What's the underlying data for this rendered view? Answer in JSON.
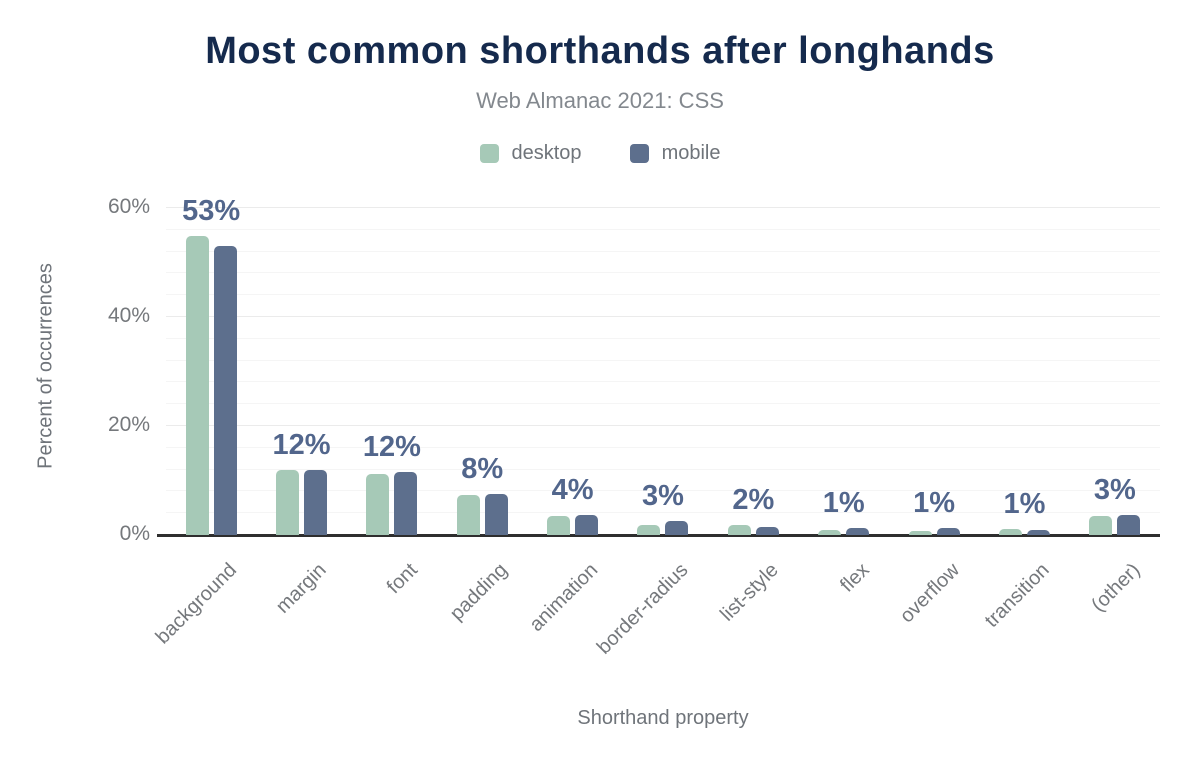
{
  "header": {
    "title": "Most common shorthands after longhands",
    "subtitle": "Web Almanac 2021: CSS"
  },
  "legend": [
    {
      "label": "desktop",
      "color": "#a6c9b7"
    },
    {
      "label": "mobile",
      "color": "#5d6f8d"
    }
  ],
  "chart_data": {
    "type": "bar",
    "title": "Most common shorthands after longhands",
    "subtitle": "Web Almanac 2021: CSS",
    "categories": [
      "background",
      "margin",
      "font",
      "padding",
      "animation",
      "border-radius",
      "list-style",
      "flex",
      "overflow",
      "transition",
      "(other)"
    ],
    "series": [
      {
        "name": "desktop",
        "color": "#a6c9b7",
        "values": [
          54.8,
          11.9,
          11.2,
          7.4,
          3.4,
          1.8,
          1.9,
          0.9,
          0.8,
          1.1,
          3.4
        ]
      },
      {
        "name": "mobile",
        "color": "#5d6f8d",
        "values": [
          53.0,
          12.0,
          11.5,
          7.5,
          3.6,
          2.5,
          1.5,
          1.3,
          1.2,
          1.0,
          3.6
        ]
      }
    ],
    "bar_labels": [
      "53%",
      "12%",
      "12%",
      "8%",
      "4%",
      "3%",
      "2%",
      "1%",
      "1%",
      "1%",
      "3%"
    ],
    "xlabel": "Shorthand property",
    "ylabel": "Percent of occurrences",
    "y_ticks": [
      {
        "label": "0%",
        "value": 0
      },
      {
        "label": "20%",
        "value": 20
      },
      {
        "label": "40%",
        "value": 40
      },
      {
        "label": "60%",
        "value": 60
      }
    ],
    "ylim": [
      0,
      60
    ],
    "grid": {
      "minor_step": 4,
      "major_step": 20,
      "legend_position": "top"
    },
    "colors": {
      "title": "#152a4d",
      "subtitle": "#83888e",
      "axis_text": "#75787c",
      "value_label": "#52668c",
      "axis_line": "#2e2e2e"
    }
  }
}
